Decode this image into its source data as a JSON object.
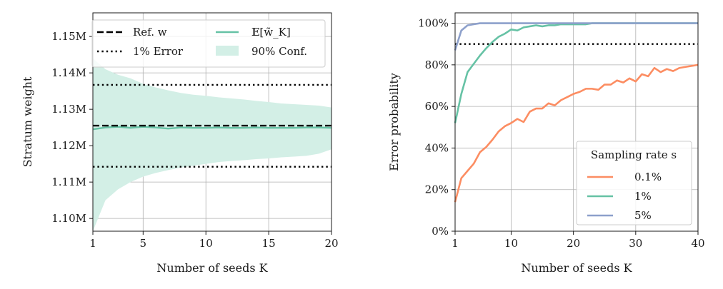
{
  "chart_data": [
    {
      "type": "line",
      "title": "",
      "xlabel": "Number of seeds K",
      "ylabel": "Stratum weight",
      "xlim": [
        1,
        20
      ],
      "ylim": [
        1.0965,
        1.1565
      ],
      "x_ticks": [
        1,
        5,
        10,
        15,
        20
      ],
      "x_tick_labels": [
        "1",
        "5",
        "10",
        "15",
        "20"
      ],
      "y_ticks": [
        1.1,
        1.11,
        1.12,
        1.13,
        1.14,
        1.15
      ],
      "y_tick_labels": [
        "1.10M",
        "1.11M",
        "1.12M",
        "1.13M",
        "1.14M",
        "1.15M"
      ],
      "grid": true,
      "legend_position": "top",
      "legend": {
        "ref": "Ref. w",
        "error": "1% Error",
        "mean": "𝔼[w̃_K]",
        "conf": "90% Conf."
      },
      "reference": 1.1255,
      "error_bounds": [
        1.1142,
        1.1367
      ],
      "x": [
        1,
        2,
        3,
        4,
        5,
        6,
        7,
        8,
        9,
        10,
        11,
        12,
        13,
        14,
        15,
        16,
        17,
        18,
        19,
        20
      ],
      "mean": [
        1.1245,
        1.125,
        1.1252,
        1.1249,
        1.1252,
        1.125,
        1.1247,
        1.125,
        1.1249,
        1.1249,
        1.125,
        1.1249,
        1.1249,
        1.125,
        1.1249,
        1.1249,
        1.1249,
        1.125,
        1.125,
        1.1249
      ],
      "conf_upper": [
        1.144,
        1.141,
        1.1395,
        1.1385,
        1.137,
        1.136,
        1.1352,
        1.1345,
        1.134,
        1.1337,
        1.1333,
        1.133,
        1.1327,
        1.1323,
        1.132,
        1.1316,
        1.1314,
        1.1312,
        1.131,
        1.1305
      ],
      "conf_lower": [
        1.0965,
        1.105,
        1.108,
        1.11,
        1.1115,
        1.1125,
        1.1133,
        1.114,
        1.1145,
        1.115,
        1.1155,
        1.1158,
        1.116,
        1.1163,
        1.1165,
        1.1168,
        1.117,
        1.1172,
        1.1178,
        1.119
      ],
      "colors": {
        "mean": "#66c2a5",
        "conf": "#d3efe6",
        "ref": "#000000",
        "error": "#000000"
      }
    },
    {
      "type": "line",
      "title": "",
      "xlabel": "Number of seeds K",
      "ylabel": "Error probability",
      "xlim": [
        1,
        40
      ],
      "ylim": [
        0,
        105
      ],
      "x_ticks": [
        1,
        10,
        20,
        30,
        40
      ],
      "x_tick_labels": [
        "1",
        "10",
        "20",
        "30",
        "40"
      ],
      "y_ticks": [
        0,
        20,
        40,
        60,
        80,
        100
      ],
      "y_tick_labels": [
        "0%",
        "20%",
        "40%",
        "60%",
        "80%",
        "100%"
      ],
      "grid": true,
      "legend_title": "Sampling rate s",
      "legend_position": "lower-right",
      "threshold": 90,
      "x": [
        1,
        2,
        3,
        4,
        5,
        6,
        7,
        8,
        9,
        10,
        11,
        12,
        13,
        14,
        15,
        16,
        17,
        18,
        19,
        20,
        21,
        22,
        23,
        24,
        25,
        26,
        27,
        28,
        29,
        30,
        31,
        32,
        33,
        34,
        35,
        36,
        37,
        38,
        39,
        40
      ],
      "series": [
        {
          "name": "0.1%",
          "color": "#fc8d62",
          "values": [
            14,
            25.5,
            29,
            32.5,
            38,
            40.5,
            44,
            48,
            50.5,
            52,
            54,
            52.5,
            57.5,
            59,
            59,
            61.5,
            60.5,
            63,
            64.5,
            66,
            67,
            68.5,
            68.5,
            68,
            70.5,
            70.5,
            72.5,
            71.5,
            73.5,
            72,
            75.5,
            74.5,
            78.5,
            76.5,
            78,
            77,
            78.5,
            79,
            79.5,
            80
          ]
        },
        {
          "name": "1%",
          "color": "#66c2a5",
          "values": [
            52,
            66,
            76.5,
            80.5,
            84.5,
            88,
            91,
            93.5,
            95,
            97,
            96.5,
            98,
            98.5,
            99,
            98.5,
            99,
            99,
            99.5,
            99.5,
            99.5,
            99.5,
            99.5,
            100,
            100,
            100,
            100,
            100,
            100,
            100,
            100,
            100,
            100,
            100,
            100,
            100,
            100,
            100,
            100,
            100,
            100
          ]
        },
        {
          "name": "5%",
          "color": "#8da0cb",
          "values": [
            87,
            96.5,
            99,
            99.5,
            100,
            100,
            100,
            100,
            100,
            100,
            100,
            100,
            100,
            100,
            100,
            100,
            100,
            100,
            100,
            100,
            100,
            100,
            100,
            100,
            100,
            100,
            100,
            100,
            100,
            100,
            100,
            100,
            100,
            100,
            100,
            100,
            100,
            100,
            100,
            100
          ]
        }
      ]
    }
  ]
}
